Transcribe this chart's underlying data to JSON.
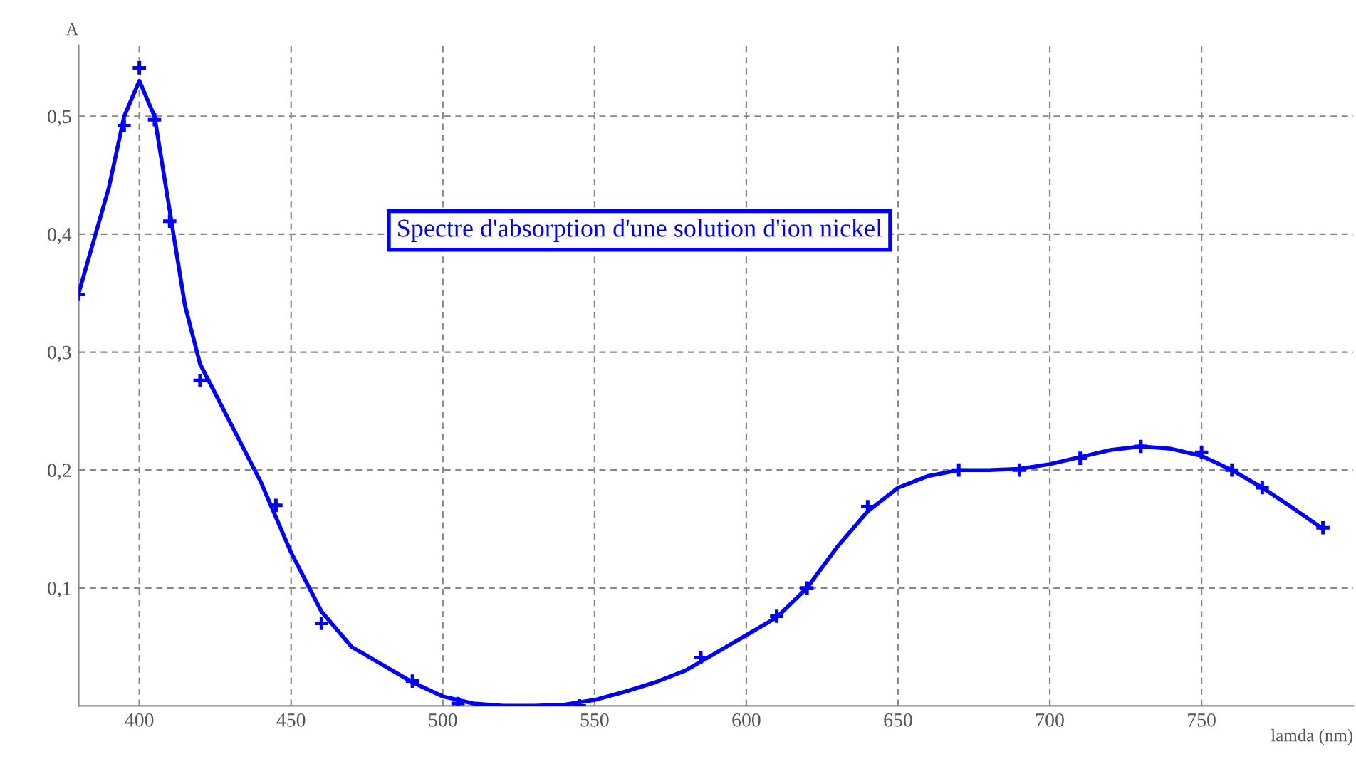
{
  "chart_data": {
    "type": "line",
    "title": "Spectre d'absorption d'une solution d'ion nickel",
    "xlabel": "lamda (nm)",
    "ylabel": "A",
    "xlim": [
      380,
      800
    ],
    "ylim": [
      0,
      0.56
    ],
    "xticks": [
      400,
      450,
      500,
      550,
      600,
      650,
      700,
      750
    ],
    "yticks": [
      {
        "value": 0.1,
        "label": "0,1"
      },
      {
        "value": 0.2,
        "label": "0,2"
      },
      {
        "value": 0.3,
        "label": "0,3"
      },
      {
        "value": 0.4,
        "label": "0,4"
      },
      {
        "value": 0.5,
        "label": "0,5"
      }
    ],
    "grid": true,
    "legend": false,
    "series": [
      {
        "type": "scatter",
        "marker": "cross",
        "color": "#0000ff",
        "x": [
          380,
          395,
          400,
          405,
          410,
          420,
          445,
          460,
          490,
          505,
          545,
          585,
          610,
          620,
          640,
          670,
          690,
          710,
          730,
          750,
          760,
          770,
          790
        ],
        "values": [
          0.349,
          0.492,
          0.541,
          0.497,
          0.411,
          0.276,
          0.17,
          0.07,
          0.021,
          0.002,
          0.0,
          0.041,
          0.076,
          0.1,
          0.169,
          0.2,
          0.2,
          0.21,
          0.22,
          0.215,
          0.2,
          0.185,
          0.151
        ]
      },
      {
        "marker": "none",
        "line_style": "solid",
        "color": "#0000ff",
        "x": [
          380,
          390,
          395,
          400,
          405,
          410,
          415,
          420,
          430,
          440,
          450,
          460,
          470,
          480,
          490,
          500,
          510,
          520,
          530,
          540,
          550,
          560,
          570,
          580,
          590,
          600,
          610,
          620,
          630,
          640,
          650,
          660,
          670,
          680,
          690,
          700,
          710,
          720,
          730,
          740,
          750,
          760,
          770,
          780,
          790
        ],
        "values": [
          0.35,
          0.44,
          0.5,
          0.53,
          0.5,
          0.42,
          0.34,
          0.29,
          0.24,
          0.19,
          0.13,
          0.08,
          0.05,
          0.035,
          0.02,
          0.008,
          0.002,
          0.0,
          0.0,
          0.001,
          0.005,
          0.012,
          0.02,
          0.03,
          0.045,
          0.06,
          0.075,
          0.1,
          0.135,
          0.165,
          0.185,
          0.195,
          0.2,
          0.2,
          0.201,
          0.205,
          0.211,
          0.217,
          0.22,
          0.218,
          0.212,
          0.2,
          0.185,
          0.168,
          0.15
        ]
      }
    ]
  }
}
